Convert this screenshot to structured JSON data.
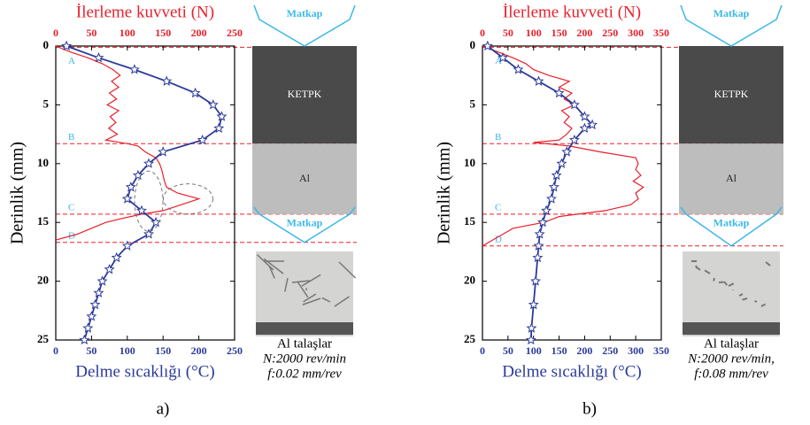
{
  "chart_data": [
    {
      "type": "line",
      "panel_label": "a)",
      "ylabel": "Derinlik (mm)",
      "x2label": "İlerleme kuvveti (N)",
      "xlabel": "Delme sıcaklığı (°C)",
      "ylim": [
        0,
        25
      ],
      "yticks": [
        0,
        5,
        10,
        15,
        20,
        25
      ],
      "xlim": [
        0,
        250
      ],
      "xticks": [
        0,
        50,
        100,
        150,
        200,
        250
      ],
      "x2lim": [
        0,
        250
      ],
      "x2ticks": [
        0,
        50,
        100,
        150,
        200,
        250
      ],
      "series": [
        {
          "color": "#e8202a",
          "axis": "x2",
          "depth": [
            0,
            0.5,
            1,
            1.5,
            2,
            2.5,
            3,
            3.5,
            4,
            4.5,
            5,
            5.5,
            6,
            6.5,
            7,
            7.5,
            8,
            8.3,
            8.5,
            9,
            9.5,
            10,
            10.5,
            11,
            11.5,
            12,
            12.5,
            13,
            13.5,
            14,
            14.3,
            14.7,
            15,
            15.5,
            16,
            16.5
          ],
          "values": [
            0,
            20,
            45,
            65,
            80,
            90,
            78,
            88,
            75,
            85,
            72,
            88,
            76,
            84,
            74,
            86,
            70,
            100,
            115,
            125,
            140,
            145,
            148,
            150,
            152,
            155,
            170,
            200,
            175,
            150,
            120,
            90,
            70,
            50,
            30,
            0
          ]
        },
        {
          "color": "#2b3a9a",
          "marker": "star",
          "depth": [
            0,
            1,
            2,
            3,
            4,
            5,
            6,
            7,
            8,
            9,
            10,
            11,
            12,
            13,
            14,
            15,
            16,
            17,
            18,
            19,
            20,
            21,
            22,
            23,
            24,
            25
          ],
          "values": [
            15,
            60,
            110,
            155,
            195,
            220,
            232,
            228,
            205,
            150,
            130,
            115,
            105,
            100,
            120,
            140,
            130,
            100,
            85,
            75,
            65,
            60,
            55,
            50,
            45,
            40
          ]
        }
      ],
      "levels": [
        {
          "label": "A",
          "value": 0.1
        },
        {
          "label": "B",
          "value": 8.3
        },
        {
          "label": "C",
          "value": 14.3
        },
        {
          "label": "D",
          "value": 16.7
        }
      ],
      "drill_labels": [
        "Matkap",
        "Matkap"
      ],
      "layer_labels": [
        "KETPK",
        "Al"
      ],
      "caption": [
        "Al talaşlar",
        "N:2000 rev/min",
        "f:0.02 mm/rev"
      ]
    },
    {
      "type": "line",
      "panel_label": "b)",
      "ylabel": "Derinlik (mm)",
      "x2label": "İlerleme kuvveti (N)",
      "xlabel": "Delme sıcaklığı (°C)",
      "ylim": [
        0,
        25
      ],
      "yticks": [
        0,
        5,
        10,
        15,
        20,
        25
      ],
      "xlim": [
        0,
        350
      ],
      "xticks": [
        0,
        50,
        100,
        150,
        200,
        250,
        300,
        350
      ],
      "x2lim": [
        0,
        350
      ],
      "x2ticks": [
        0,
        50,
        100,
        150,
        200,
        250,
        300,
        350
      ],
      "series": [
        {
          "color": "#e8202a",
          "axis": "x2",
          "depth": [
            0,
            0.5,
            1,
            1.5,
            2,
            2.5,
            3,
            3.5,
            4,
            4.5,
            5,
            5.5,
            6,
            6.5,
            7,
            7.5,
            8,
            8.2,
            8.5,
            9,
            9.5,
            10,
            10.5,
            11,
            11.5,
            12,
            12.5,
            13,
            13.5,
            14,
            14.5,
            15,
            15.5,
            16,
            16.5,
            17
          ],
          "values": [
            0,
            30,
            60,
            85,
            100,
            130,
            170,
            150,
            175,
            160,
            180,
            155,
            170,
            160,
            175,
            165,
            150,
            100,
            170,
            230,
            300,
            305,
            300,
            310,
            295,
            315,
            300,
            305,
            290,
            240,
            150,
            120,
            60,
            40,
            20,
            0
          ]
        },
        {
          "color": "#2b3a9a",
          "marker": "star",
          "depth": [
            0,
            1,
            2,
            3,
            4,
            5,
            6,
            6.7,
            7,
            8,
            9,
            10,
            11,
            12,
            13,
            14,
            15,
            16,
            17,
            18,
            20,
            22,
            24,
            25
          ],
          "values": [
            10,
            40,
            70,
            110,
            150,
            180,
            200,
            215,
            200,
            180,
            165,
            155,
            145,
            140,
            135,
            125,
            118,
            112,
            110,
            108,
            104,
            100,
            96,
            95
          ]
        }
      ],
      "levels": [
        {
          "label": "A",
          "value": 0.1
        },
        {
          "label": "B",
          "value": 8.3
        },
        {
          "label": "C",
          "value": 14.3
        },
        {
          "label": "D",
          "value": 17
        }
      ],
      "drill_labels": [
        "Matkap",
        "Matkap"
      ],
      "layer_labels": [
        "KETPK",
        "Al"
      ],
      "caption": [
        "Al talaşlar",
        "N:2000 rev/min,",
        "f:0.08 mm/rev"
      ]
    }
  ]
}
